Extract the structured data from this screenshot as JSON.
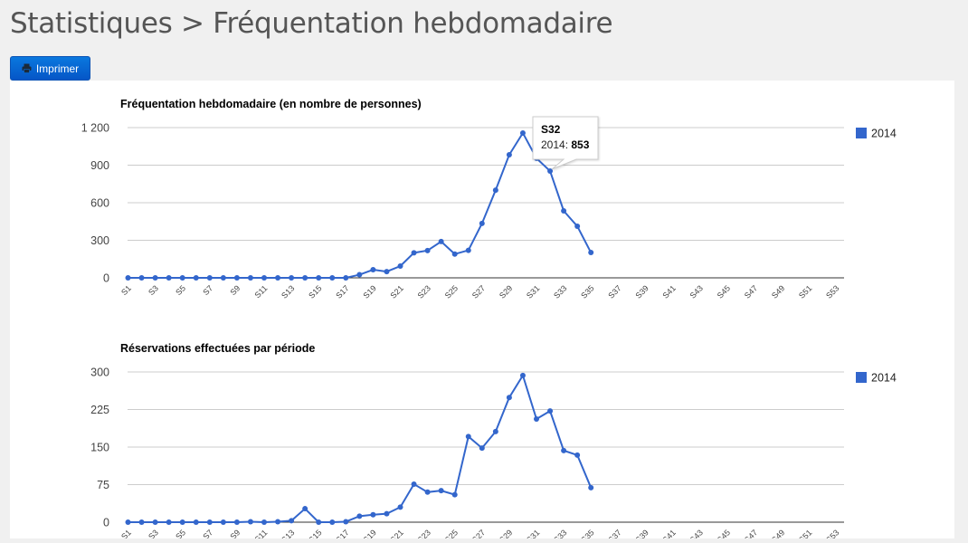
{
  "header": {
    "title": "Statistiques > Fréquentation hebdomadaire"
  },
  "toolbar": {
    "print_label": "Imprimer",
    "print_icon": "printer-icon"
  },
  "colors": {
    "series": "#3366cc",
    "button": "#0a6fd8",
    "title_text": "#555555"
  },
  "tooltip": {
    "title": "S32",
    "series_label": "2014:",
    "value": "853"
  },
  "chart_data": [
    {
      "type": "line",
      "title": "Fréquentation hebdomadaire (en nombre de personnes)",
      "xlabel": "",
      "ylabel": "",
      "ylim": [
        0,
        1200
      ],
      "yticks": [
        "0",
        "300",
        "600",
        "900",
        "1 200"
      ],
      "ytick_values": [
        0,
        300,
        600,
        900,
        1200
      ],
      "xtick_labels": [
        "S1",
        "S3",
        "S5",
        "S7",
        "S9",
        "S11",
        "S13",
        "S15",
        "S17",
        "S19",
        "S21",
        "S23",
        "S25",
        "S27",
        "S29",
        "S31",
        "S33",
        "S35",
        "S37",
        "S39",
        "S41",
        "S43",
        "S45",
        "S47",
        "S49",
        "S51",
        "S53"
      ],
      "grid": true,
      "legend_position": "right",
      "x": [
        "S1",
        "S2",
        "S3",
        "S4",
        "S5",
        "S6",
        "S7",
        "S8",
        "S9",
        "S10",
        "S11",
        "S12",
        "S13",
        "S14",
        "S15",
        "S16",
        "S17",
        "S18",
        "S19",
        "S20",
        "S21",
        "S22",
        "S23",
        "S24",
        "S25",
        "S26",
        "S27",
        "S28",
        "S29",
        "S30",
        "S31",
        "S32",
        "S33",
        "S34",
        "S35"
      ],
      "series": [
        {
          "name": "2014",
          "color": "#3366cc",
          "values": [
            0,
            0,
            0,
            0,
            0,
            0,
            0,
            0,
            0,
            0,
            0,
            0,
            0,
            0,
            0,
            0,
            0,
            25,
            65,
            50,
            94,
            200,
            218,
            290,
            190,
            220,
            435,
            700,
            983,
            1157,
            955,
            853,
            535,
            412,
            202
          ]
        }
      ],
      "tooltip": {
        "category": "S32",
        "series": "2014",
        "value": 853
      }
    },
    {
      "type": "line",
      "title": "Réservations effectuées par période",
      "xlabel": "",
      "ylabel": "",
      "ylim": [
        0,
        300
      ],
      "yticks": [
        "0",
        "75",
        "150",
        "225",
        "300"
      ],
      "ytick_values": [
        0,
        75,
        150,
        225,
        300
      ],
      "xtick_labels": [
        "S1",
        "S3",
        "S5",
        "S7",
        "S9",
        "S11",
        "S13",
        "S15",
        "S17",
        "S19",
        "S21",
        "S23",
        "S25",
        "S27",
        "S29",
        "S31",
        "S33",
        "S35",
        "S37",
        "S39",
        "S41",
        "S43",
        "S45",
        "S47",
        "S49",
        "S51",
        "S53"
      ],
      "grid": true,
      "legend_position": "right",
      "x": [
        "S1",
        "S2",
        "S3",
        "S4",
        "S5",
        "S6",
        "S7",
        "S8",
        "S9",
        "S10",
        "S11",
        "S12",
        "S13",
        "S14",
        "S15",
        "S16",
        "S17",
        "S18",
        "S19",
        "S20",
        "S21",
        "S22",
        "S23",
        "S24",
        "S25",
        "S26",
        "S27",
        "S28",
        "S29",
        "S30",
        "S31",
        "S32",
        "S33",
        "S34",
        "S35"
      ],
      "series": [
        {
          "name": "2014",
          "color": "#3366cc",
          "values": [
            0,
            0,
            0,
            0,
            0,
            0,
            0,
            0,
            0,
            1,
            0,
            1,
            3,
            27,
            0,
            0,
            1,
            12,
            15,
            17,
            30,
            76,
            60,
            63,
            55,
            171,
            148,
            181,
            249,
            293,
            206,
            222,
            143,
            134,
            69
          ]
        }
      ]
    }
  ]
}
